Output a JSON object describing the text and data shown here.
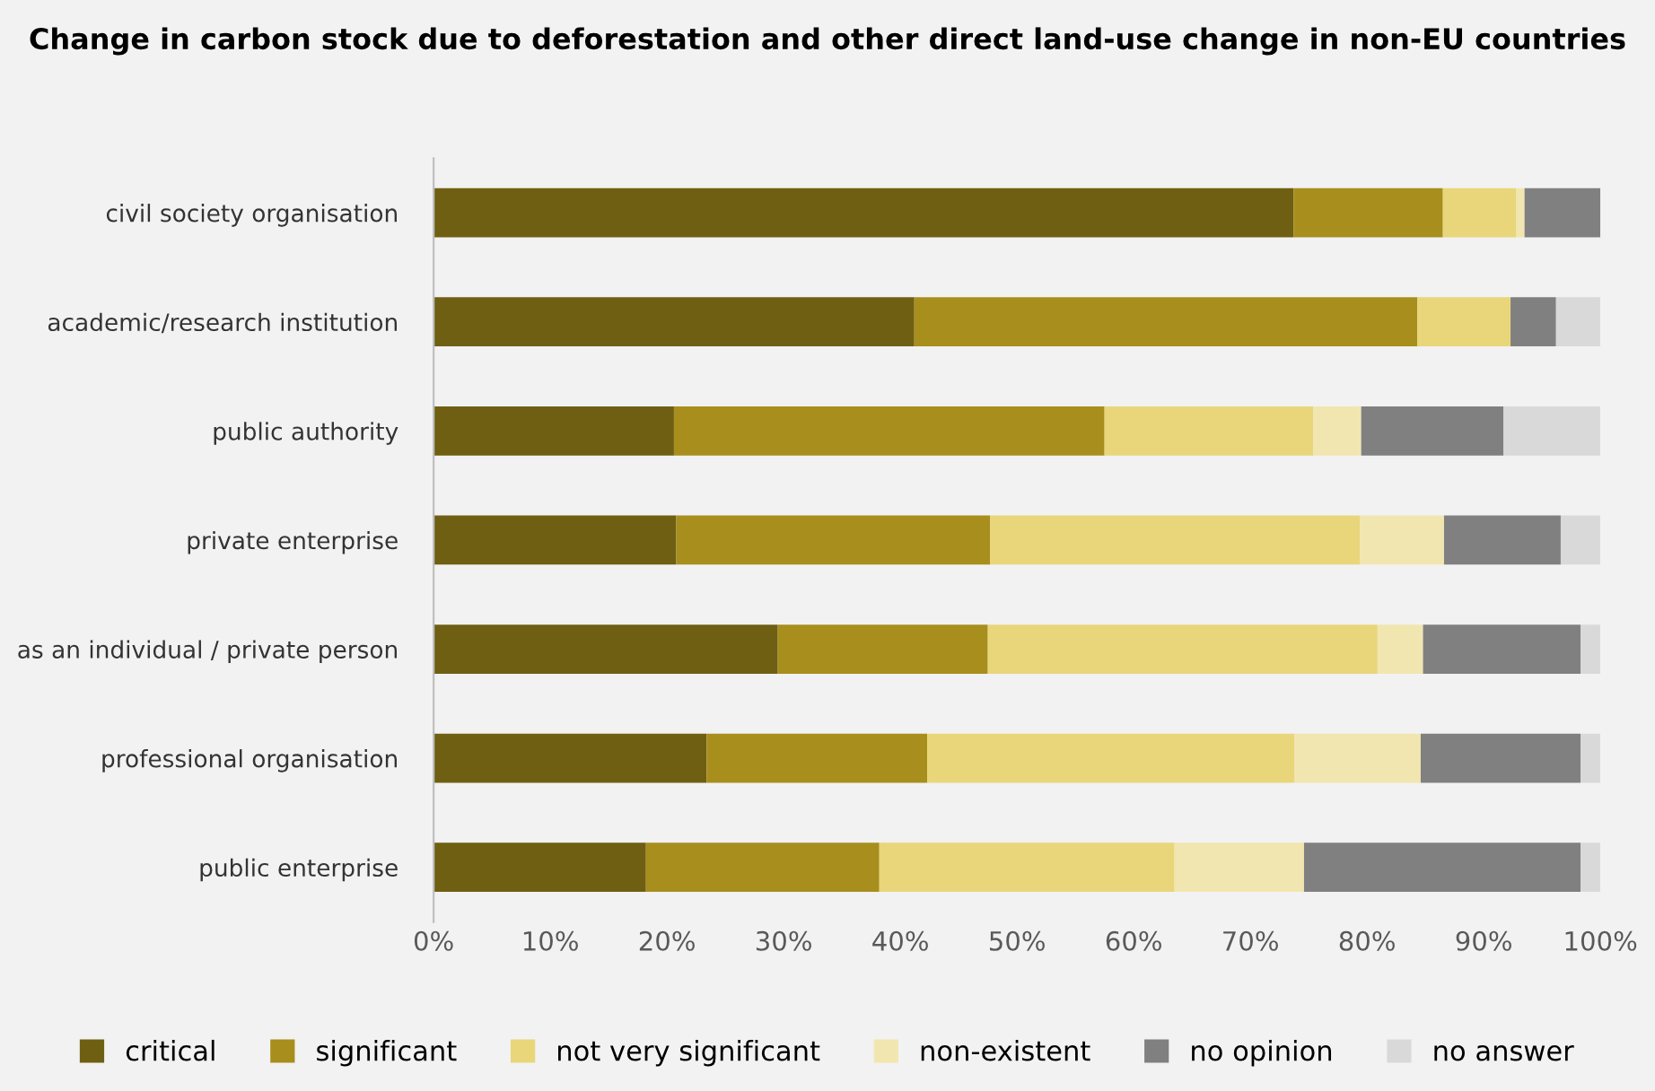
{
  "chart_data": {
    "type": "bar",
    "orientation": "horizontal",
    "stacked": true,
    "title": "Change in carbon stock due to deforestation and other direct land-use change in non-EU countries",
    "categories": [
      "civil society organisation",
      "academic/research institution",
      "public authority",
      "private enterprise",
      "as an individual / private person",
      "professional organisation",
      "public enterprise"
    ],
    "series": [
      {
        "name": "critical",
        "color": "#6f5f12",
        "values": [
          73.7,
          41.2,
          20.6,
          20.8,
          29.5,
          23.4,
          18.2
        ]
      },
      {
        "name": "significant",
        "color": "#a88e1c",
        "values": [
          12.8,
          43.1,
          36.9,
          26.9,
          18.0,
          18.9,
          20.0
        ]
      },
      {
        "name": "not very significant",
        "color": "#e9d67a",
        "values": [
          6.3,
          8.0,
          17.9,
          31.7,
          33.4,
          31.5,
          25.3
        ]
      },
      {
        "name": "non-existent",
        "color": "#f2e6b0",
        "values": [
          0.7,
          0,
          4.1,
          7.2,
          3.9,
          10.8,
          11.1
        ]
      },
      {
        "name": "no opinion",
        "color": "#808080",
        "values": [
          6.5,
          3.9,
          12.2,
          10.0,
          13.5,
          13.7,
          23.7
        ]
      },
      {
        "name": "no answer",
        "color": "#d9d9d9",
        "values": [
          0,
          3.8,
          8.3,
          3.4,
          1.7,
          1.7,
          1.7
        ]
      }
    ],
    "xlim": [
      0,
      100
    ],
    "xticks": [
      {
        "value": 0,
        "label": "0%"
      },
      {
        "value": 10,
        "label": "10%"
      },
      {
        "value": 20,
        "label": "20%"
      },
      {
        "value": 30,
        "label": "30%"
      },
      {
        "value": 40,
        "label": "40%"
      },
      {
        "value": 50,
        "label": "50%"
      },
      {
        "value": 60,
        "label": "60%"
      },
      {
        "value": 70,
        "label": "70%"
      },
      {
        "value": 80,
        "label": "80%"
      },
      {
        "value": 90,
        "label": "90%"
      },
      {
        "value": 100,
        "label": "100%"
      }
    ],
    "grid": false,
    "legend": "bottom"
  }
}
